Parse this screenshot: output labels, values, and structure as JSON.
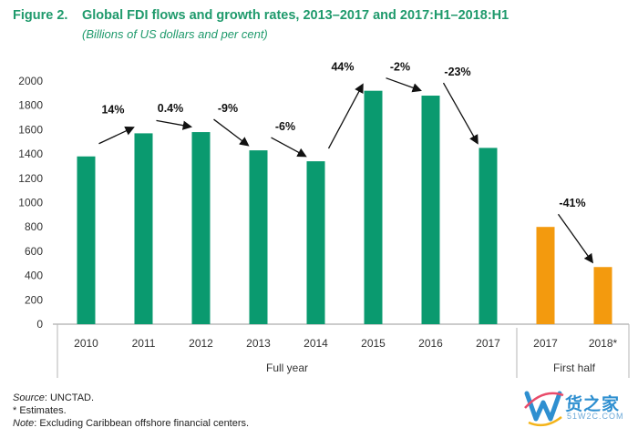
{
  "header": {
    "figure_label": "Figure 2.",
    "title": "Global FDI flows and growth rates, 2013–2017 and 2017:H1–2018:H1",
    "subtitle": "(Billions of US dollars and per cent)"
  },
  "chart_data": {
    "type": "bar",
    "ylim": [
      0,
      2000
    ],
    "yticks": [
      0,
      200,
      400,
      600,
      800,
      1000,
      1200,
      1400,
      1600,
      1800,
      2000
    ],
    "groups": [
      {
        "label": "Full year",
        "color": "#0a9a6f",
        "categories": [
          "2010",
          "2011",
          "2012",
          "2013",
          "2014",
          "2015",
          "2016",
          "2017"
        ],
        "values": [
          1380,
          1570,
          1580,
          1430,
          1340,
          1920,
          1880,
          1450
        ],
        "growth_labels": [
          "14%",
          "0.4%",
          "-9%",
          "-6%",
          "44%",
          "-2%",
          "-23%"
        ]
      },
      {
        "label": "First half",
        "color": "#f39a0e",
        "categories": [
          "2017",
          "2018*"
        ],
        "values": [
          800,
          470
        ],
        "growth_labels": [
          "-41%"
        ]
      }
    ],
    "grid": false,
    "legend": "none"
  },
  "footnotes": {
    "source_label": "Source",
    "source_text": ": UNCTAD.",
    "estimates": "* Estimates.",
    "note_label": "Note",
    "note_text": ": Excluding Caribbean offshore financial centers."
  },
  "watermark": {
    "brand": "货之家",
    "domain": "51W2C.COM",
    "colors": [
      "#2e8fd0",
      "#e94b6a",
      "#f4b41a"
    ]
  }
}
